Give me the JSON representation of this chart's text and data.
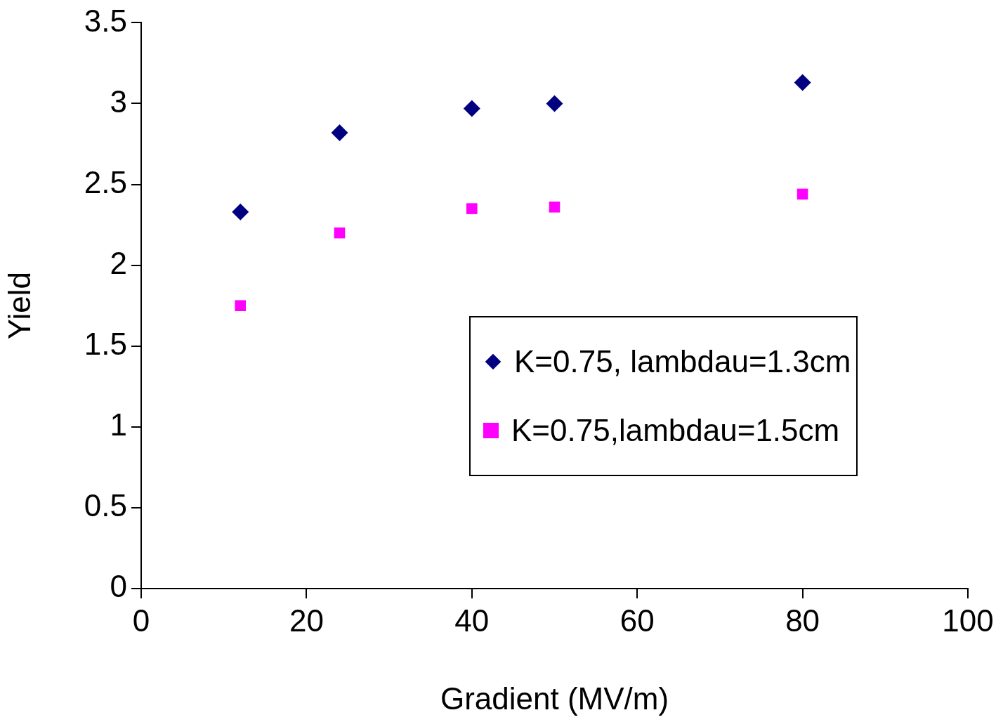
{
  "chart_data": {
    "type": "scatter",
    "xlabel": "Gradient (MV/m)",
    "ylabel": "Yield",
    "x": [
      12,
      24,
      40,
      50,
      80
    ],
    "series": [
      {
        "name": "K=0.75, lambdau=1.3cm",
        "color": "#000080",
        "marker": "diamond",
        "values": [
          2.33,
          2.82,
          2.97,
          3.0,
          3.13
        ]
      },
      {
        "name": "K=0.75,lambdau=1.5cm",
        "color": "#ff00ff",
        "marker": "square",
        "values": [
          1.75,
          2.2,
          2.35,
          2.36,
          2.44
        ]
      }
    ],
    "xlim": [
      0,
      100
    ],
    "xticks": [
      0,
      20,
      40,
      60,
      80,
      100
    ],
    "ylim": [
      0,
      3.5
    ],
    "yticks": [
      0,
      0.5,
      1,
      1.5,
      2,
      2.5,
      3,
      3.5
    ],
    "grid": false,
    "legend": "right"
  }
}
